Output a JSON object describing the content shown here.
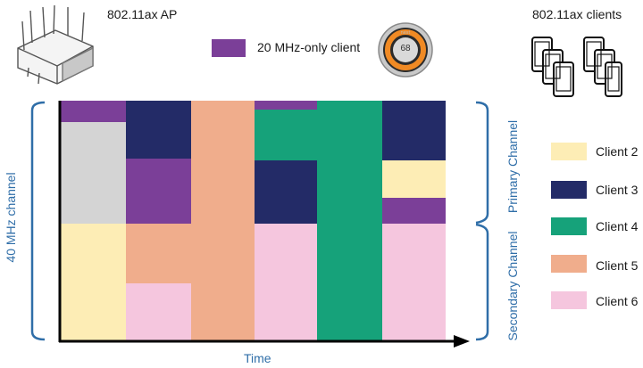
{
  "ap": {
    "label": "802.11ax AP",
    "icon": "wifi-router-icon"
  },
  "clients_header": {
    "label": "802.11ax clients",
    "icon": "smartphones-icon"
  },
  "legacy_client": {
    "label": "20 MHz-only client",
    "color": "#7b3f98",
    "thermostat_value": "68",
    "thermostat_icon": "thermostat-icon"
  },
  "axes": {
    "x_label": "Time",
    "left_label": "40 MHz channel",
    "primary_label": "Primary Channel",
    "secondary_label": "Secondary Channel"
  },
  "legend": [
    {
      "label": "Client 2",
      "color": "#fdedb5"
    },
    {
      "label": "Client 3",
      "color": "#232b67"
    },
    {
      "label": "Client 4",
      "color": "#16a27a"
    },
    {
      "label": "Client 5",
      "color": "#f0ad8c"
    },
    {
      "label": "Client 6",
      "color": "#f5c6de"
    }
  ],
  "colors": {
    "legacy": "#7b3f98",
    "client2": "#fdedb5",
    "client3": "#232b67",
    "client4": "#16a27a",
    "client5": "#f0ad8c",
    "client6": "#f5c6de",
    "idle": "#d4d4d4",
    "bracket": "#2f6ea8"
  }
}
